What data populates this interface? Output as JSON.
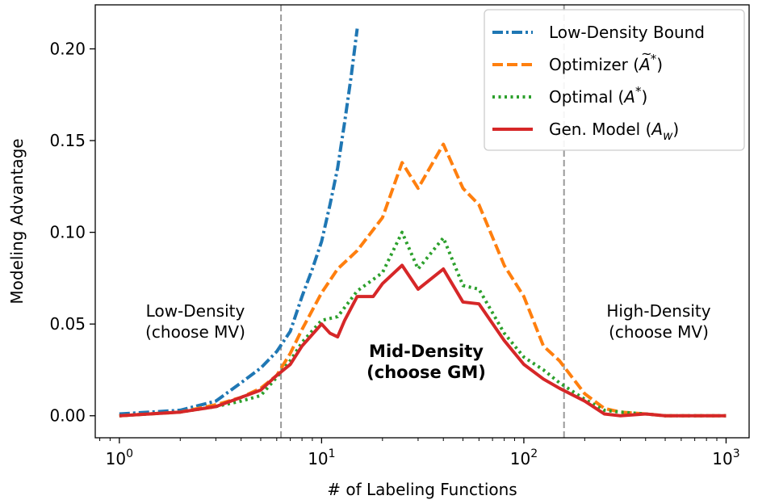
{
  "chart_data": {
    "type": "line",
    "xlabel": "# of Labeling Functions",
    "ylabel": "Modeling Advantage",
    "xscale": "log",
    "xlim": [
      0.76,
      1300
    ],
    "ylim": [
      -0.012,
      0.224
    ],
    "xticks": [
      {
        "value": 1,
        "base": "10",
        "exp": "0"
      },
      {
        "value": 10,
        "base": "10",
        "exp": "1"
      },
      {
        "value": 100,
        "base": "10",
        "exp": "2"
      },
      {
        "value": 1000,
        "base": "10",
        "exp": "3"
      }
    ],
    "yticks": [
      {
        "value": 0.0,
        "label": "0.00"
      },
      {
        "value": 0.05,
        "label": "0.05"
      },
      {
        "value": 0.1,
        "label": "0.10"
      },
      {
        "value": 0.15,
        "label": "0.15"
      },
      {
        "value": 0.2,
        "label": "0.20"
      }
    ],
    "vlines": [
      6.3,
      158
    ],
    "legend_position": "top-right",
    "grid": false,
    "series": [
      {
        "name": "Low-Density Bound",
        "legend_main": "Low-Density Bound",
        "legend_math": "",
        "legend_sup": "",
        "legend_sub": "",
        "legend_tilde": false,
        "legend_close": "",
        "color": "#1f77b4",
        "style": "dashdot",
        "x": [
          1,
          2,
          3,
          4,
          5,
          6,
          7,
          8,
          9,
          10,
          11,
          12,
          13,
          14,
          15
        ],
        "y": [
          0.001,
          0.003,
          0.008,
          0.018,
          0.026,
          0.035,
          0.046,
          0.065,
          0.08,
          0.095,
          0.115,
          0.135,
          0.16,
          0.185,
          0.211
        ]
      },
      {
        "name": "Optimizer (Ã*)",
        "legend_main": "Optimizer (",
        "legend_math": "A",
        "legend_sup": "*",
        "legend_sub": "",
        "legend_tilde": true,
        "legend_close": ")",
        "color": "#ff7f0e",
        "style": "dashed",
        "x": [
          1,
          2,
          3,
          4,
          5,
          6,
          7,
          8,
          10,
          12,
          15,
          20,
          25,
          30,
          40,
          50,
          60,
          80,
          100,
          125,
          150,
          200,
          250,
          300,
          400,
          500,
          600,
          800,
          1000
        ],
        "y": [
          0.0,
          0.002,
          0.006,
          0.01,
          0.015,
          0.022,
          0.034,
          0.047,
          0.067,
          0.08,
          0.09,
          0.108,
          0.138,
          0.124,
          0.148,
          0.124,
          0.115,
          0.082,
          0.065,
          0.038,
          0.03,
          0.012,
          0.004,
          0.002,
          0.001,
          0.0,
          0.0,
          0.0,
          0.0
        ]
      },
      {
        "name": "Optimal (A*)",
        "legend_main": "Optimal (",
        "legend_math": "A",
        "legend_sup": "*",
        "legend_sub": "",
        "legend_tilde": false,
        "legend_close": ")",
        "color": "#2ca02c",
        "style": "dotted",
        "x": [
          1,
          2,
          3,
          4,
          5,
          6,
          7,
          8,
          10,
          12,
          15,
          20,
          25,
          30,
          40,
          50,
          60,
          80,
          100,
          125,
          150,
          200,
          250,
          300,
          400,
          500,
          600,
          800,
          1000
        ],
        "y": [
          0.0,
          0.002,
          0.005,
          0.008,
          0.011,
          0.021,
          0.03,
          0.04,
          0.052,
          0.054,
          0.068,
          0.078,
          0.1,
          0.08,
          0.097,
          0.071,
          0.069,
          0.045,
          0.032,
          0.025,
          0.018,
          0.009,
          0.003,
          0.002,
          0.001,
          0.0,
          0.0,
          0.0,
          0.0
        ]
      },
      {
        "name": "Gen. Model (Aw)",
        "legend_main": "Gen. Model (",
        "legend_math": "A",
        "legend_sup": "",
        "legend_sub": "w",
        "legend_tilde": false,
        "legend_close": ")",
        "color": "#d62728",
        "style": "solid",
        "x": [
          1,
          2,
          3,
          4,
          5,
          6,
          7,
          8,
          10,
          11,
          12,
          13,
          15,
          18,
          20,
          25,
          30,
          40,
          50,
          60,
          80,
          100,
          125,
          150,
          200,
          250,
          300,
          400,
          500,
          600,
          800,
          1000
        ],
        "y": [
          0.0,
          0.002,
          0.005,
          0.01,
          0.014,
          0.022,
          0.028,
          0.038,
          0.05,
          0.045,
          0.043,
          0.052,
          0.065,
          0.065,
          0.072,
          0.082,
          0.069,
          0.08,
          0.062,
          0.061,
          0.041,
          0.028,
          0.02,
          0.015,
          0.008,
          0.001,
          0.0,
          0.001,
          0.0,
          0.0,
          0.0,
          0.0
        ]
      }
    ],
    "annotations": [
      {
        "id": "low",
        "lines": [
          "Low-Density",
          "(choose MV)"
        ],
        "bold": false
      },
      {
        "id": "mid",
        "lines": [
          "Mid-Density",
          "(choose GM)"
        ],
        "bold": true
      },
      {
        "id": "high",
        "lines": [
          "High-Density",
          "(choose MV)"
        ],
        "bold": false
      }
    ]
  }
}
